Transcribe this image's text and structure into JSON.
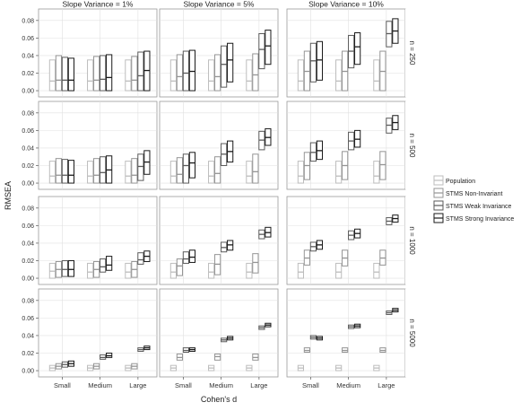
{
  "chart_data": {
    "type": "boxplot-facets",
    "ylabel": "RMSEA",
    "xlabel": "Cohen's d",
    "col_labels": [
      "Slope Variance = 1%",
      "Slope Variance = 5%",
      "Slope Variance = 10%"
    ],
    "row_labels": [
      "n = 250",
      "n = 500",
      "n = 1000",
      "n = 5000"
    ],
    "categories": [
      "Small",
      "Medium",
      "Large"
    ],
    "y_ticks": [
      "0.00",
      "0.02",
      "0.04",
      "0.06",
      "0.08"
    ],
    "ylim": [
      -0.002,
      0.088
    ],
    "grid": true,
    "legend_position": "right",
    "series": [
      {
        "name": "Population",
        "color": "#bdbdbd"
      },
      {
        "name": "STMS Non-Invariant",
        "color": "#949494"
      },
      {
        "name": "STMS Weak Invariance",
        "color": "#5a5a5a"
      },
      {
        "name": "STMS Strong Invariance",
        "color": "#1a1a1a"
      }
    ],
    "panels": [
      {
        "row": 0,
        "col": 0,
        "boxes": [
          [
            [
              0,
              0.011,
              0.035
            ],
            [
              0,
              0.012,
              0.04
            ],
            [
              0,
              0.012,
              0.038
            ],
            [
              0,
              0.012,
              0.037
            ]
          ],
          [
            [
              0,
              0.011,
              0.035
            ],
            [
              0,
              0.012,
              0.039
            ],
            [
              0,
              0.013,
              0.04
            ],
            [
              0,
              0.015,
              0.041
            ]
          ],
          [
            [
              0,
              0.011,
              0.035
            ],
            [
              0,
              0.012,
              0.039
            ],
            [
              0,
              0.017,
              0.044
            ],
            [
              0,
              0.023,
              0.045
            ]
          ]
        ]
      },
      {
        "row": 0,
        "col": 1,
        "boxes": [
          [
            [
              0,
              0.011,
              0.035
            ],
            [
              0,
              0.016,
              0.041
            ],
            [
              0,
              0.02,
              0.045
            ],
            [
              0,
              0.022,
              0.046
            ]
          ],
          [
            [
              0,
              0.011,
              0.035
            ],
            [
              0,
              0.016,
              0.041
            ],
            [
              0.004,
              0.03,
              0.051
            ],
            [
              0.01,
              0.035,
              0.054
            ]
          ],
          [
            [
              0,
              0.011,
              0.035
            ],
            [
              0,
              0.018,
              0.042
            ],
            [
              0.025,
              0.047,
              0.065
            ],
            [
              0.03,
              0.051,
              0.069
            ]
          ]
        ]
      },
      {
        "row": 0,
        "col": 2,
        "boxes": [
          [
            [
              0,
              0.011,
              0.035
            ],
            [
              0,
              0.022,
              0.045
            ],
            [
              0.01,
              0.034,
              0.054
            ],
            [
              0.012,
              0.035,
              0.056
            ]
          ],
          [
            [
              0,
              0.011,
              0.035
            ],
            [
              0,
              0.022,
              0.045
            ],
            [
              0.026,
              0.045,
              0.063
            ],
            [
              0.03,
              0.05,
              0.066
            ]
          ],
          [
            [
              0,
              0.011,
              0.035
            ],
            [
              0,
              0.022,
              0.045
            ],
            [
              0.05,
              0.065,
              0.079
            ],
            [
              0.054,
              0.068,
              0.082
            ]
          ]
        ]
      },
      {
        "row": 1,
        "col": 0,
        "boxes": [
          [
            [
              0,
              0.008,
              0.025
            ],
            [
              0,
              0.009,
              0.028
            ],
            [
              0,
              0.009,
              0.027
            ],
            [
              0,
              0.009,
              0.026
            ]
          ],
          [
            [
              0,
              0.008,
              0.025
            ],
            [
              0,
              0.009,
              0.028
            ],
            [
              0,
              0.012,
              0.03
            ],
            [
              0,
              0.015,
              0.031
            ]
          ],
          [
            [
              0,
              0.008,
              0.025
            ],
            [
              0,
              0.009,
              0.028
            ],
            [
              0.003,
              0.019,
              0.033
            ],
            [
              0.01,
              0.024,
              0.037
            ]
          ]
        ]
      },
      {
        "row": 1,
        "col": 1,
        "boxes": [
          [
            [
              0,
              0.008,
              0.025
            ],
            [
              0,
              0.01,
              0.029
            ],
            [
              0,
              0.02,
              0.033
            ],
            [
              0.006,
              0.023,
              0.035
            ]
          ],
          [
            [
              0,
              0.008,
              0.025
            ],
            [
              0,
              0.011,
              0.03
            ],
            [
              0.02,
              0.033,
              0.045
            ],
            [
              0.024,
              0.036,
              0.048
            ]
          ],
          [
            [
              0,
              0.008,
              0.025
            ],
            [
              0,
              0.013,
              0.033
            ],
            [
              0.038,
              0.049,
              0.059
            ],
            [
              0.043,
              0.052,
              0.062
            ]
          ]
        ]
      },
      {
        "row": 1,
        "col": 2,
        "boxes": [
          [
            [
              0,
              0.008,
              0.025
            ],
            [
              0.004,
              0.02,
              0.035
            ],
            [
              0.025,
              0.035,
              0.046
            ],
            [
              0.027,
              0.037,
              0.048
            ]
          ],
          [
            [
              0,
              0.008,
              0.025
            ],
            [
              0.004,
              0.02,
              0.036
            ],
            [
              0.038,
              0.048,
              0.058
            ],
            [
              0.041,
              0.05,
              0.06
            ]
          ],
          [
            [
              0,
              0.008,
              0.025
            ],
            [
              0.004,
              0.021,
              0.036
            ],
            [
              0.057,
              0.066,
              0.074
            ],
            [
              0.061,
              0.069,
              0.077
            ]
          ]
        ]
      },
      {
        "row": 2,
        "col": 0,
        "boxes": [
          [
            [
              0,
              0.008,
              0.017
            ],
            [
              0.001,
              0.01,
              0.019
            ],
            [
              0.002,
              0.01,
              0.02
            ],
            [
              0.002,
              0.01,
              0.02
            ]
          ],
          [
            [
              0,
              0.007,
              0.017
            ],
            [
              0.001,
              0.01,
              0.019
            ],
            [
              0.007,
              0.013,
              0.022
            ],
            [
              0.009,
              0.015,
              0.025
            ]
          ],
          [
            [
              0,
              0.007,
              0.017
            ],
            [
              0.001,
              0.01,
              0.019
            ],
            [
              0.016,
              0.021,
              0.029
            ],
            [
              0.019,
              0.025,
              0.031
            ]
          ]
        ]
      },
      {
        "row": 2,
        "col": 1,
        "boxes": [
          [
            [
              0,
              0.007,
              0.017
            ],
            [
              0.003,
              0.014,
              0.022
            ],
            [
              0.017,
              0.022,
              0.03
            ],
            [
              0.018,
              0.024,
              0.032
            ]
          ],
          [
            [
              0,
              0.007,
              0.017
            ],
            [
              0.004,
              0.016,
              0.027
            ],
            [
              0.03,
              0.035,
              0.041
            ],
            [
              0.032,
              0.038,
              0.043
            ]
          ],
          [
            [
              0,
              0.007,
              0.017
            ],
            [
              0.006,
              0.018,
              0.028
            ],
            [
              0.045,
              0.05,
              0.055
            ],
            [
              0.047,
              0.052,
              0.058
            ]
          ]
        ]
      },
      {
        "row": 2,
        "col": 2,
        "boxes": [
          [
            [
              0,
              0.007,
              0.017
            ],
            [
              0.015,
              0.023,
              0.032
            ],
            [
              0.031,
              0.036,
              0.041
            ],
            [
              0.033,
              0.038,
              0.043
            ]
          ],
          [
            [
              0,
              0.007,
              0.017
            ],
            [
              0.014,
              0.023,
              0.032
            ],
            [
              0.044,
              0.049,
              0.054
            ],
            [
              0.046,
              0.051,
              0.056
            ]
          ],
          [
            [
              0,
              0.007,
              0.017
            ],
            [
              0.015,
              0.023,
              0.032
            ],
            [
              0.061,
              0.065,
              0.069
            ],
            [
              0.064,
              0.068,
              0.072
            ]
          ]
        ]
      },
      {
        "row": 3,
        "col": 0,
        "boxes": [
          [
            [
              0,
              0.003,
              0.006
            ],
            [
              0.002,
              0.005,
              0.008
            ],
            [
              0.004,
              0.007,
              0.01
            ],
            [
              0.005,
              0.008,
              0.011
            ]
          ],
          [
            [
              0,
              0.003,
              0.006
            ],
            [
              0.002,
              0.005,
              0.008
            ],
            [
              0.013,
              0.015,
              0.018
            ],
            [
              0.015,
              0.017,
              0.02
            ]
          ],
          [
            [
              0,
              0.003,
              0.006
            ],
            [
              0.002,
              0.005,
              0.008
            ],
            [
              0.022,
              0.024,
              0.026
            ],
            [
              0.024,
              0.026,
              0.028
            ]
          ]
        ]
      },
      {
        "row": 3,
        "col": 1,
        "boxes": [
          [
            [
              0,
              0.003,
              0.006
            ],
            [
              0.012,
              0.015,
              0.019
            ],
            [
              0.021,
              0.023,
              0.026
            ],
            [
              0.022,
              0.024,
              0.026
            ]
          ],
          [
            [
              0,
              0.003,
              0.006
            ],
            [
              0.012,
              0.016,
              0.019
            ],
            [
              0.033,
              0.035,
              0.037
            ],
            [
              0.035,
              0.037,
              0.039
            ]
          ],
          [
            [
              0,
              0.003,
              0.006
            ],
            [
              0.012,
              0.015,
              0.019
            ],
            [
              0.047,
              0.049,
              0.051
            ],
            [
              0.05,
              0.052,
              0.054
            ]
          ]
        ]
      },
      {
        "row": 3,
        "col": 2,
        "boxes": [
          [
            [
              0,
              0.003,
              0.006
            ],
            [
              0.021,
              0.023,
              0.026
            ],
            [
              0.036,
              0.038,
              0.04
            ],
            [
              0.035,
              0.037,
              0.039
            ]
          ],
          [
            [
              0,
              0.003,
              0.006
            ],
            [
              0.021,
              0.023,
              0.026
            ],
            [
              0.048,
              0.05,
              0.052
            ],
            [
              0.049,
              0.051,
              0.053
            ]
          ],
          [
            [
              0,
              0.003,
              0.006
            ],
            [
              0.021,
              0.023,
              0.026
            ],
            [
              0.064,
              0.066,
              0.068
            ],
            [
              0.067,
              0.069,
              0.071
            ]
          ]
        ]
      }
    ]
  }
}
